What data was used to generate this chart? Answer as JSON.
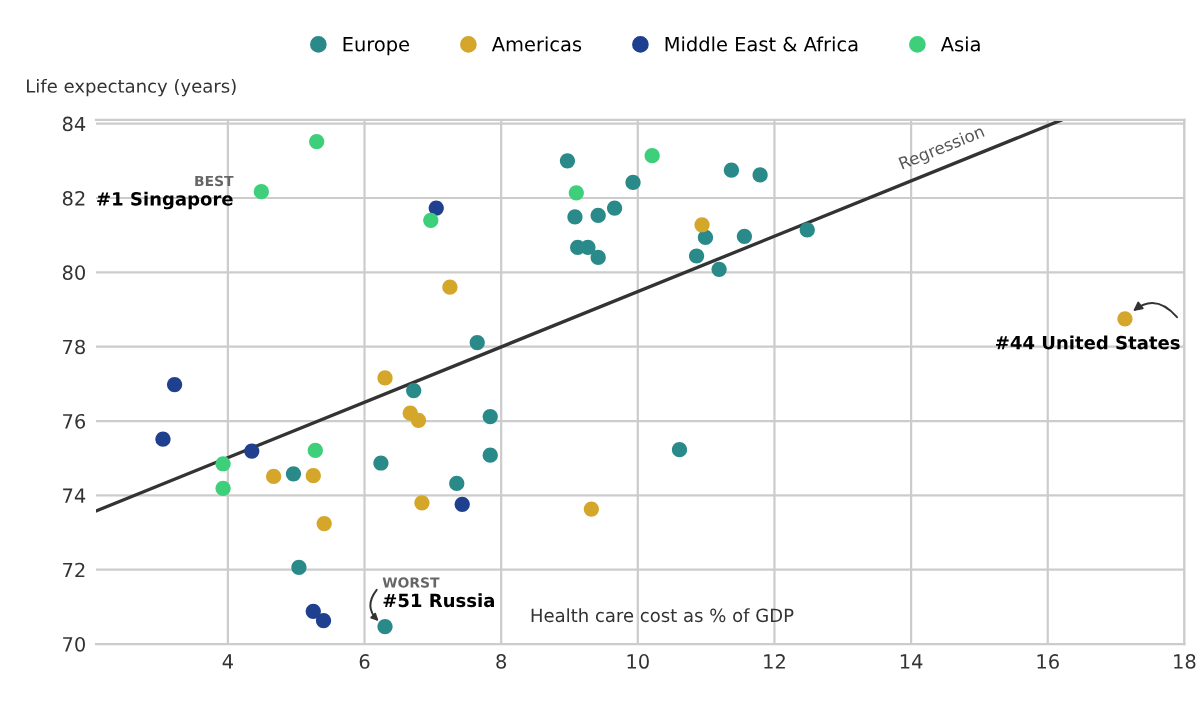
{
  "chart_data": {
    "type": "scatter",
    "xlabel": "Health care cost as % of GDP",
    "ylabel": "Life expectancy (years)",
    "xlim": [
      2.07,
      18
    ],
    "ylim": [
      70,
      84.1
    ],
    "xticks": [
      4,
      6,
      8,
      10,
      12,
      14,
      16,
      18
    ],
    "yticks": [
      70,
      72,
      74,
      76,
      78,
      80,
      82,
      84
    ],
    "grid": true,
    "legend": "top",
    "marker": "circle",
    "series": [
      {
        "name": "Europe",
        "color": "#2a8a8a",
        "x": [
          6.72,
          4.96,
          6.24,
          7.35,
          5.04,
          6.3,
          8.97,
          11.37,
          11.79,
          9.93,
          9.08,
          9.42,
          9.66,
          9.12,
          9.27,
          9.42,
          10.99,
          11.56,
          10.86,
          11.19,
          7.65,
          7.84,
          7.84,
          10.61,
          12.48
        ],
        "values": [
          76.82,
          74.58,
          74.87,
          74.32,
          72.06,
          70.47,
          83.0,
          82.75,
          82.62,
          82.42,
          81.49,
          81.53,
          81.73,
          80.67,
          80.67,
          80.4,
          80.94,
          80.97,
          80.44,
          80.08,
          78.11,
          76.12,
          75.08,
          75.23,
          81.14
        ]
      },
      {
        "name": "Americas",
        "color": "#d4a62a",
        "x": [
          7.25,
          6.3,
          6.67,
          6.79,
          4.67,
          5.25,
          6.84,
          5.41,
          10.94,
          9.32,
          17.13
        ],
        "values": [
          79.6,
          77.16,
          76.21,
          76.02,
          74.51,
          74.53,
          73.8,
          73.24,
          81.28,
          73.63,
          78.75
        ]
      },
      {
        "name": "Middle East & Africa",
        "color": "#1f3f8f",
        "x": [
          7.05,
          3.22,
          3.05,
          4.35,
          5.25,
          5.4,
          7.43
        ],
        "values": [
          81.73,
          76.98,
          75.51,
          75.19,
          70.88,
          70.63,
          73.76
        ]
      },
      {
        "name": "Asia",
        "color": "#3ecf7a",
        "x": [
          5.3,
          4.49,
          6.97,
          5.28,
          3.93,
          3.93,
          9.1,
          10.21
        ],
        "values": [
          83.52,
          82.17,
          81.4,
          75.21,
          74.85,
          74.19,
          82.14,
          83.14
        ]
      },
      {
        "name": "Regression",
        "type": "line",
        "color": "#333333",
        "line_style": "solid",
        "marker": "none",
        "x": [
          2.07,
          16.19
        ],
        "values": [
          73.58,
          84.09
        ]
      }
    ],
    "annotations": [
      {
        "text": "BEST",
        "x": 4.49,
        "y": 82.17
      },
      {
        "text": "#1 Singapore",
        "x": 4.49,
        "y": 82.17
      },
      {
        "text": "WORST",
        "x": 6.3,
        "y": 70.47
      },
      {
        "text": "#51 Russia",
        "x": 6.3,
        "y": 70.47
      },
      {
        "text": "#44 United States",
        "x": 17.13,
        "y": 78.75
      }
    ]
  }
}
